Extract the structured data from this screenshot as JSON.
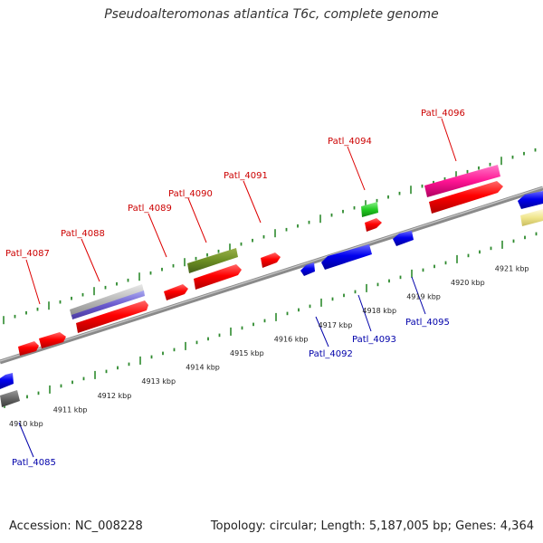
{
  "title": "Pseudoalteromonas atlantica T6c, complete genome",
  "footer": {
    "accession": "Accession: NC_008228",
    "stats": "Topology: circular; Length: 5,187,005 bp; Genes: 4,364"
  },
  "colors": {
    "forward_label": "#cc0000",
    "reverse_label": "#0000aa",
    "tick": "#2e8b2e",
    "backbone": "#8a8a8a"
  },
  "ruler": [
    "4910 kbp",
    "4911 kbp",
    "4912 kbp",
    "4913 kbp",
    "4914 kbp",
    "4915 kbp",
    "4916 kbp",
    "4917 kbp",
    "4918 kbp",
    "4919 kbp",
    "4920 kbp",
    "4921 kbp"
  ],
  "forward_labels": [
    "Patl_4087",
    "Patl_4088",
    "Patl_4089",
    "Patl_4090",
    "Patl_4091",
    "Patl_4094",
    "Patl_4096"
  ],
  "reverse_labels": [
    "Patl_4085",
    "Patl_4092",
    "Patl_4093",
    "Patl_4095"
  ]
}
